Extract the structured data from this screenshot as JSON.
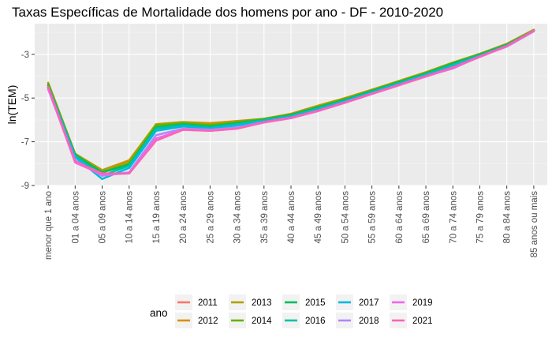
{
  "chart_data": {
    "type": "line",
    "title": "Taxas Específicas de Mortalidade dos homens por ano - DF - 2010-2020",
    "xlabel": "",
    "ylabel": "ln(TEM)",
    "ylim": [
      -9.0,
      -1.6
    ],
    "yticks": [
      -3,
      -5,
      -7,
      -9
    ],
    "grid": true,
    "legend_title": "ano",
    "legend_position": "bottom",
    "categories": [
      "menor que 1 ano",
      "01 a 04 anos",
      "05 a 09 anos",
      "10 a 14 anos",
      "15 a 19 anos",
      "20 a 24 anos",
      "25 a 29 anos",
      "30 a 34 anos",
      "35 a 39 anos",
      "40 a 44 anos",
      "45 a 49 anos",
      "50 a 54 anos",
      "55 a 59 anos",
      "60 a 64 anos",
      "65 a 69 anos",
      "70 a 74 anos",
      "75 a 79 anos",
      "80 a 84 anos",
      "85 anos ou mais"
    ],
    "series": [
      {
        "name": "2011",
        "color": "#F8766D",
        "values": [
          -4.4,
          -7.55,
          -8.35,
          -8.0,
          -6.25,
          -6.15,
          -6.25,
          -6.1,
          -5.95,
          -5.75,
          -5.4,
          -5.05,
          -4.65,
          -4.25,
          -3.85,
          -3.4,
          -3.0,
          -2.55,
          -1.9
        ]
      },
      {
        "name": "2012",
        "color": "#DB8E00",
        "values": [
          -4.45,
          -7.55,
          -8.3,
          -7.85,
          -6.2,
          -6.1,
          -6.15,
          -6.05,
          -5.95,
          -5.72,
          -5.35,
          -5.0,
          -4.62,
          -4.22,
          -3.82,
          -3.38,
          -2.98,
          -2.52,
          -1.88
        ]
      },
      {
        "name": "2013",
        "color": "#AEA200",
        "values": [
          -4.3,
          -7.55,
          -8.3,
          -7.9,
          -6.2,
          -6.1,
          -6.2,
          -6.1,
          -5.95,
          -5.75,
          -5.38,
          -5.02,
          -4.63,
          -4.23,
          -3.83,
          -3.38,
          -2.98,
          -2.53,
          -1.88
        ]
      },
      {
        "name": "2014",
        "color": "#64B200",
        "values": [
          -4.35,
          -7.6,
          -8.4,
          -8.0,
          -6.25,
          -6.15,
          -6.25,
          -6.1,
          -5.95,
          -5.75,
          -5.4,
          -5.05,
          -4.65,
          -4.25,
          -3.85,
          -3.4,
          -3.0,
          -2.55,
          -1.9
        ]
      },
      {
        "name": "2015",
        "color": "#00BD5C",
        "values": [
          -4.45,
          -7.6,
          -8.4,
          -8.05,
          -6.35,
          -6.2,
          -6.3,
          -6.15,
          -6.0,
          -5.78,
          -5.43,
          -5.08,
          -4.68,
          -4.28,
          -3.88,
          -3.43,
          -3.02,
          -2.57,
          -1.92
        ]
      },
      {
        "name": "2016",
        "color": "#00C1A7",
        "values": [
          -4.5,
          -7.65,
          -8.55,
          -8.1,
          -6.4,
          -6.25,
          -6.35,
          -6.2,
          -6.02,
          -5.82,
          -5.48,
          -5.12,
          -4.72,
          -4.32,
          -3.92,
          -3.48,
          -3.05,
          -2.6,
          -1.93
        ]
      },
      {
        "name": "2017",
        "color": "#00BADE",
        "values": [
          -4.5,
          -7.7,
          -8.7,
          -8.2,
          -6.5,
          -6.3,
          -6.4,
          -6.25,
          -6.05,
          -5.85,
          -5.52,
          -5.15,
          -4.75,
          -4.35,
          -3.95,
          -3.55,
          -3.08,
          -2.62,
          -1.94
        ]
      },
      {
        "name": "2018",
        "color": "#B385FF",
        "values": [
          -4.6,
          -7.85,
          -8.55,
          -8.4,
          -6.7,
          -6.4,
          -6.45,
          -6.35,
          -6.1,
          -5.9,
          -5.58,
          -5.2,
          -4.8,
          -4.4,
          -4.0,
          -3.65,
          -3.1,
          -2.65,
          -1.95
        ]
      },
      {
        "name": "2019",
        "color": "#EF67EB",
        "values": [
          -4.55,
          -7.95,
          -8.5,
          -8.45,
          -6.85,
          -6.45,
          -6.5,
          -6.4,
          -6.12,
          -5.92,
          -5.6,
          -5.22,
          -4.82,
          -4.42,
          -4.02,
          -3.62,
          -3.12,
          -2.63,
          -1.93
        ]
      },
      {
        "name": "2021",
        "color": "#FF63B6",
        "values": [
          -4.5,
          -7.9,
          -8.45,
          -8.45,
          -6.95,
          -6.45,
          -6.5,
          -6.4,
          -6.1,
          -5.9,
          -5.58,
          -5.2,
          -4.8,
          -4.4,
          -4.0,
          -3.6,
          -3.1,
          -2.62,
          -1.92
        ]
      }
    ]
  }
}
